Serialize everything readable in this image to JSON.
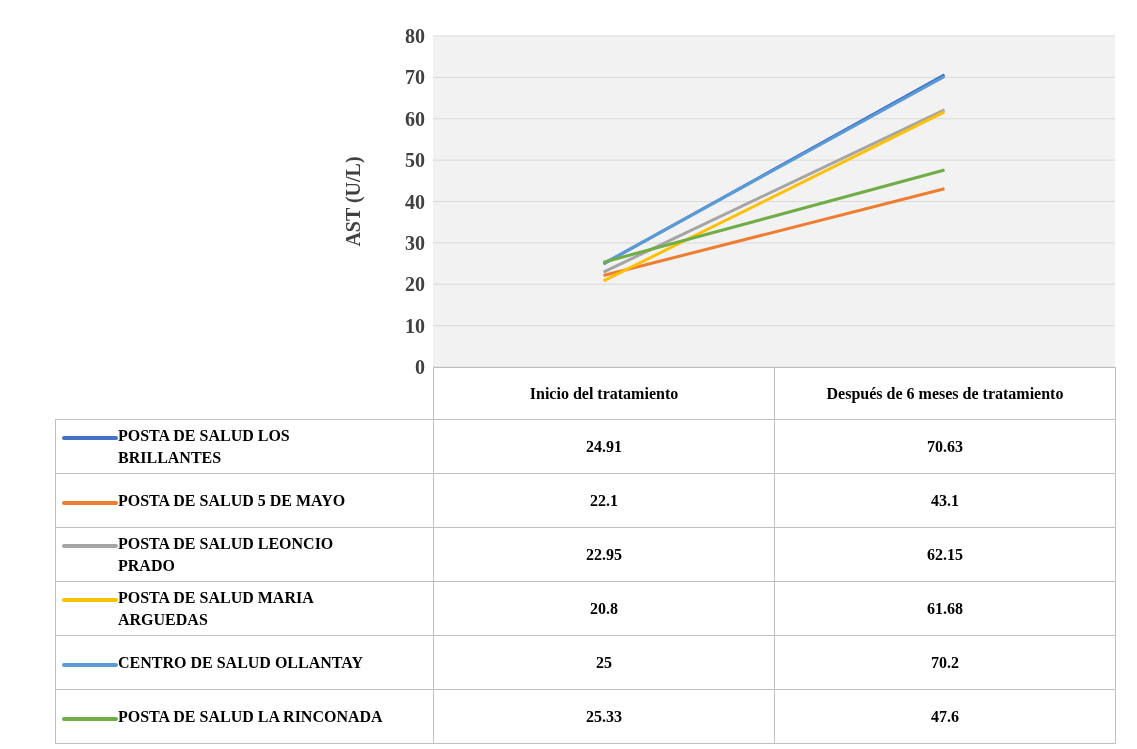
{
  "chart_data": {
    "type": "line",
    "ylabel": "AST (U/L)",
    "categories": [
      "Inicio del tratamiento",
      "Después de 6 meses de tratamiento"
    ],
    "series": [
      {
        "name": "POSTA DE SALUD LOS BRILLANTES",
        "color": "#4472c4",
        "values": [
          24.91,
          70.63
        ]
      },
      {
        "name": "POSTA DE SALUD 5 DE MAYO",
        "color": "#ed7d31",
        "values": [
          22.1,
          43.1
        ]
      },
      {
        "name": "POSTA DE SALUD LEONCIO PRADO",
        "color": "#a5a5a5",
        "values": [
          22.95,
          62.15
        ]
      },
      {
        "name": "POSTA DE SALUD MARIA ARGUEDAS",
        "color": "#ffc000",
        "values": [
          20.8,
          61.68
        ]
      },
      {
        "name": "CENTRO DE SALUD OLLANTAY",
        "color": "#5b9bd5",
        "values": [
          25,
          70.2
        ]
      },
      {
        "name": "POSTA DE SALUD LA RINCONADA",
        "color": "#70ad47",
        "values": [
          25.33,
          47.6
        ]
      }
    ],
    "ylim": [
      0,
      80
    ],
    "yticks": [
      0,
      10,
      20,
      30,
      40,
      50,
      60,
      70,
      80
    ],
    "grid": "y",
    "legend": "bottom",
    "data_labels": true,
    "marker": "none",
    "line_style": "solid"
  }
}
